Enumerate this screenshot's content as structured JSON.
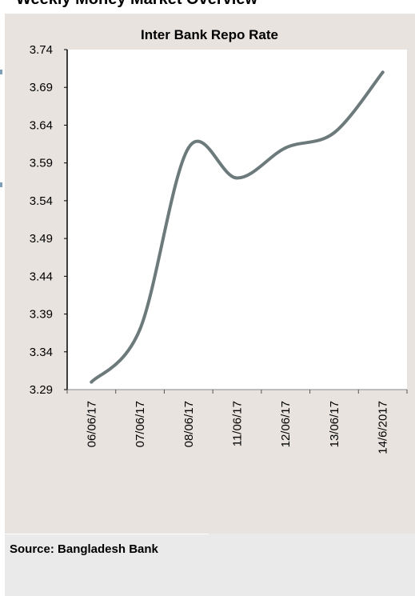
{
  "page": {
    "header_title": "Weekly Money Market Overview",
    "source": "Source: Bangladesh Bank"
  },
  "colors": {
    "panel_bg": "#e8e3df",
    "plot_bg": "#ffffff",
    "line": "#6d7a7c",
    "axis": "#000000"
  },
  "chart_data": {
    "type": "line",
    "title": "Inter Bank Repo Rate",
    "xlabel": "",
    "ylabel": "",
    "categories": [
      "06/06/17",
      "07/06/17",
      "08/06/17",
      "11/06/17",
      "12/06/17",
      "13/06/17",
      "14/6/2017"
    ],
    "series": [
      {
        "values": [
          3.3,
          3.37,
          3.61,
          3.57,
          3.61,
          3.63,
          3.71
        ]
      }
    ],
    "ylim": [
      3.29,
      3.74
    ],
    "yticks": [
      "3.29",
      "3.34",
      "3.39",
      "3.44",
      "3.49",
      "3.54",
      "3.59",
      "3.64",
      "3.69",
      "3.74"
    ],
    "smooth": true,
    "grid": false,
    "legend": "none"
  }
}
